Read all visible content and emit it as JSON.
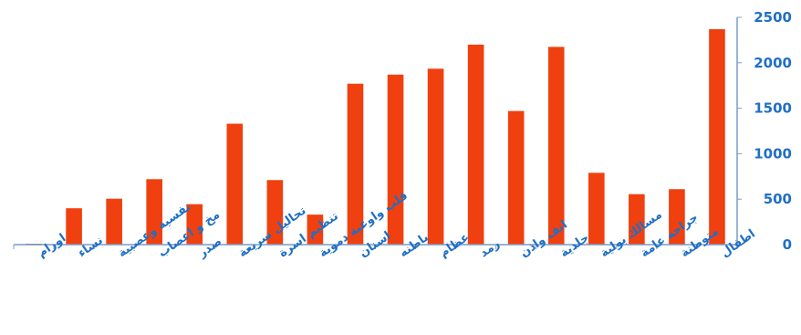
{
  "chart_data": {
    "type": "bar",
    "title": "",
    "xlabel": "",
    "ylabel": "",
    "ylim": [
      0,
      2500
    ],
    "yticks": [
      0,
      500,
      1000,
      1500,
      2000,
      2500
    ],
    "y_axis_side": "right",
    "grid": false,
    "legend": "none",
    "bar_color": "#f04010",
    "axis_color": "#7a9cc8",
    "label_color": "#1f6fc4",
    "categories": [
      "اطفال",
      "متوطنة",
      "جراحه عامة",
      "مسالك بولية",
      "جلدية",
      "انف واذن",
      "رمد",
      "عظام",
      "باطنه",
      "اسنان",
      "قلب واوعية دموية",
      "تنظيم اسرة",
      "تحاليل سريعة",
      "صدر",
      "مخ و اعصاب",
      "نفسية وعصبية",
      "نساء",
      "اورام"
    ],
    "values": [
      2370,
      610,
      555,
      790,
      2175,
      1470,
      2200,
      1935,
      1870,
      1770,
      330,
      710,
      1330,
      445,
      720,
      505,
      400,
      10
    ]
  }
}
